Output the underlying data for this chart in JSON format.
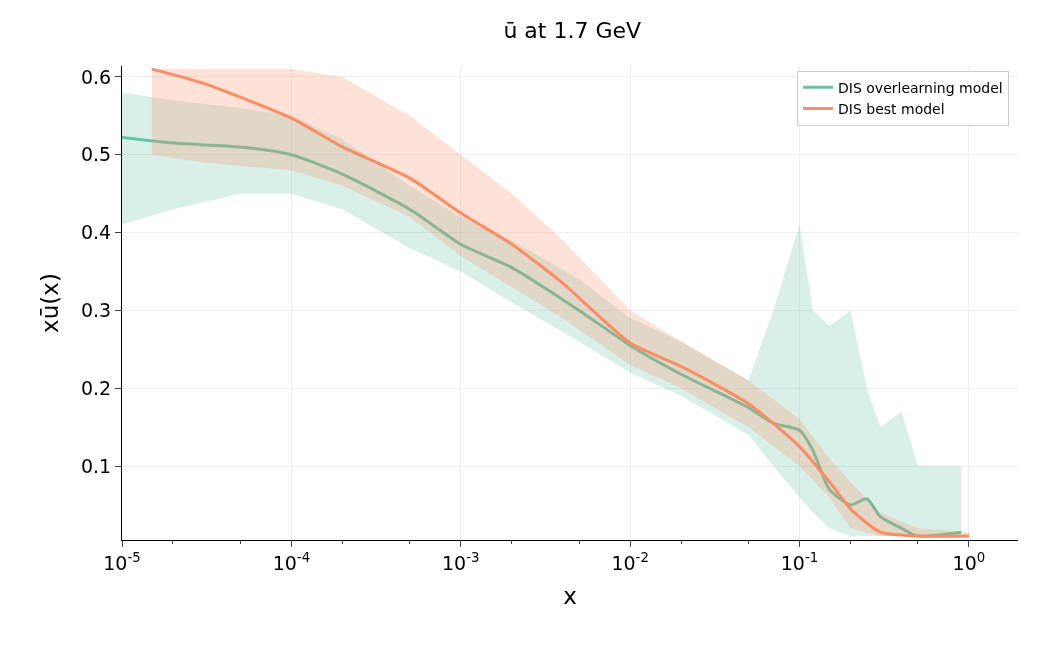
{
  "chart_data": {
    "type": "line",
    "title": "ū at 1.7 GeV",
    "xlabel": "x",
    "ylabel": "xū(x)",
    "log": "x",
    "grid": true,
    "legend": "top right",
    "line_style": "solid",
    "marker": "none",
    "xlim": [
      1e-05,
      1.95
    ],
    "ylim": [
      0.005,
      0.614
    ],
    "xticks": [
      {
        "value": 1e-05,
        "label": "10$^{-5}$"
      },
      {
        "value": 0.0001,
        "label": "10$^{-4}$"
      },
      {
        "value": 0.001,
        "label": "10$^{-3}$"
      },
      {
        "value": 0.01,
        "label": "10$^{-2}$"
      },
      {
        "value": 0.1,
        "label": "10$^{-1}$"
      },
      {
        "value": 1,
        "label": "10$^{0}$"
      }
    ],
    "yticks": [
      {
        "value": 0.1,
        "label": "0.1"
      },
      {
        "value": 0.2,
        "label": "0.2"
      },
      {
        "value": 0.3,
        "label": "0.3"
      },
      {
        "value": 0.4,
        "label": "0.4"
      },
      {
        "value": 0.5,
        "label": "0.5"
      },
      {
        "value": 0.6,
        "label": "0.6"
      }
    ],
    "series": [
      {
        "name": "DIS overlearning model",
        "color": "#66c2a5",
        "x": [
          1e-05,
          2e-05,
          5e-05,
          0.0001,
          0.0002,
          0.0005,
          0.001,
          0.002,
          0.005,
          0.01,
          0.02,
          0.05,
          0.07,
          0.1,
          0.12,
          0.15,
          0.2,
          0.25,
          0.3,
          0.4,
          0.5,
          0.9
        ],
        "values": [
          0.522,
          0.515,
          0.51,
          0.5,
          0.475,
          0.43,
          0.385,
          0.355,
          0.3,
          0.255,
          0.218,
          0.175,
          0.155,
          0.146,
          0.12,
          0.07,
          0.05,
          0.058,
          0.035,
          0.02,
          0.01,
          0.015
        ],
        "lower": [
          0.41,
          0.43,
          0.45,
          0.45,
          0.43,
          0.38,
          0.35,
          0.31,
          0.26,
          0.22,
          0.19,
          0.14,
          0.1,
          0.06,
          0.04,
          0.02,
          0.01,
          0.01,
          0.01,
          0.01,
          0.01,
          0.01
        ],
        "upper": [
          0.58,
          0.57,
          0.56,
          0.55,
          0.52,
          0.46,
          0.42,
          0.39,
          0.34,
          0.29,
          0.26,
          0.21,
          0.3,
          0.41,
          0.3,
          0.28,
          0.3,
          0.2,
          0.15,
          0.17,
          0.1,
          0.1
        ]
      },
      {
        "name": "DIS best model",
        "color": "#fc8d62",
        "x": [
          1.5e-05,
          3e-05,
          0.0001,
          0.0002,
          0.0005,
          0.001,
          0.002,
          0.004,
          0.01,
          0.02,
          0.05,
          0.1,
          0.15,
          0.2,
          0.3,
          0.5,
          1
        ],
        "values": [
          0.61,
          0.592,
          0.547,
          0.51,
          0.47,
          0.425,
          0.385,
          0.335,
          0.258,
          0.228,
          0.18,
          0.125,
          0.08,
          0.045,
          0.015,
          0.01,
          0.01
        ],
        "lower": [
          0.5,
          0.49,
          0.48,
          0.46,
          0.42,
          0.37,
          0.33,
          0.29,
          0.23,
          0.2,
          0.15,
          0.1,
          0.06,
          0.02,
          0.01,
          0.01,
          0.01
        ],
        "upper": [
          0.61,
          0.61,
          0.61,
          0.6,
          0.55,
          0.5,
          0.45,
          0.39,
          0.3,
          0.26,
          0.21,
          0.16,
          0.11,
          0.08,
          0.04,
          0.02,
          0.015
        ]
      }
    ]
  }
}
